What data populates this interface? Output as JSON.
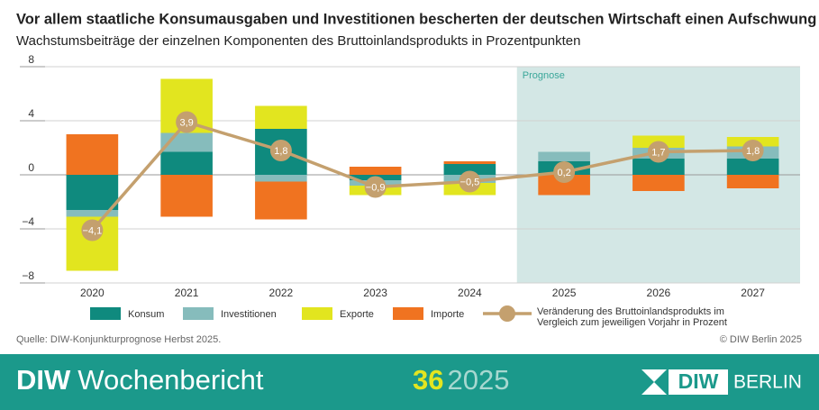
{
  "chart_data": {
    "type": "bar-line",
    "title": "Vor allem staatliche Konsumausgaben und Investitionen bescherten der deutschen Wirtschaft einen Aufschwung",
    "subtitle": "Wachstumsbeiträge der einzelnen Komponenten des Bruttoinlandsprodukts in Prozentpunkten",
    "categories": [
      "2020",
      "2021",
      "2022",
      "2023",
      "2024",
      "2025",
      "2026",
      "2027"
    ],
    "series": [
      {
        "name": "Konsum",
        "color": "#0f8a7e",
        "values": [
          -2.6,
          1.7,
          3.4,
          -0.4,
          0.8,
          1.0,
          1.2,
          1.2
        ]
      },
      {
        "name": "Investitionen",
        "color": "#86bcbc",
        "values": [
          -0.5,
          1.4,
          -0.5,
          -0.4,
          -0.6,
          0.7,
          0.8,
          0.9
        ]
      },
      {
        "name": "Exporte",
        "color": "#e2e51f",
        "values": [
          -4.0,
          4.0,
          1.7,
          -0.7,
          -0.9,
          0,
          0.9,
          0.7
        ]
      },
      {
        "name": "Importe",
        "color": "#f07320",
        "values": [
          3.0,
          -3.1,
          -2.8,
          0.6,
          0.2,
          -1.5,
          -1.2,
          -1.0
        ]
      }
    ],
    "line": {
      "name": "Veränderung des Bruttoinlandsprodukts im Vergleich zum jeweiligen Vorjahr in Prozent",
      "color": "#c4a06e",
      "values": [
        -4.1,
        3.9,
        1.8,
        -0.9,
        -0.5,
        0.2,
        1.7,
        1.8
      ],
      "value_labels": [
        "−4,1",
        "3,9",
        "1,8",
        "−0,9",
        "−0,5",
        "0,2",
        "1,7",
        "1,8"
      ]
    },
    "annotations": [
      {
        "text": "Prognose",
        "from_category": "2025",
        "color": "#d3e7e5"
      }
    ],
    "ylim": [
      -8,
      8
    ],
    "yticks": [
      {
        "value": -8,
        "label": "−8"
      },
      {
        "value": -4,
        "label": "−4"
      },
      0,
      4,
      8
    ],
    "grid": true
  },
  "footer": {
    "source": "Quelle: DIW-Konjunkturprognose Herbst 2025.",
    "credit": "© DIW Berlin 2025",
    "brand": "DIW",
    "publication": "Wochenbericht",
    "issue": "36",
    "year": "2025",
    "logo_left": "DIW",
    "logo_right": "BERLIN"
  }
}
